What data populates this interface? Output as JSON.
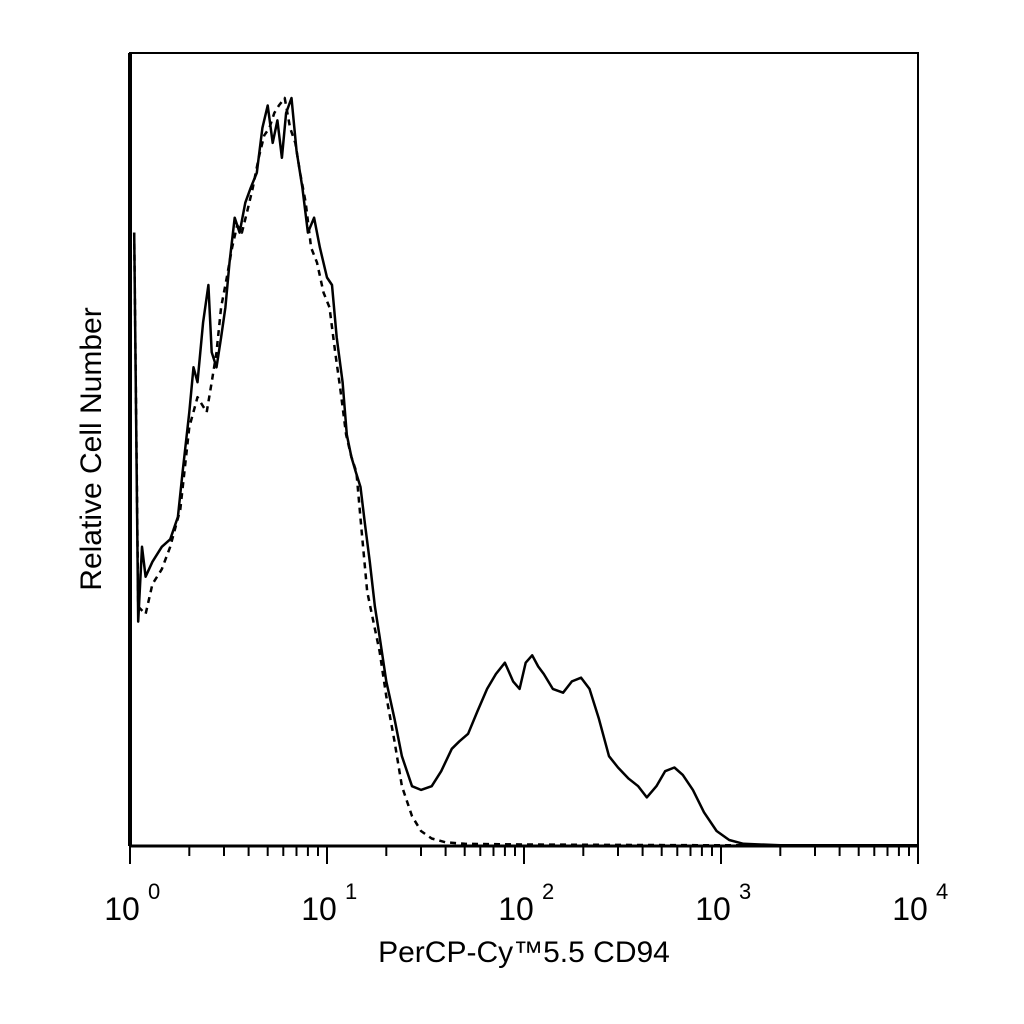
{
  "chart_data": {
    "type": "line",
    "xlabel": "PerCP-Cy™5.5 CD94",
    "ylabel": "Relative Cell Number",
    "x_scale": "log",
    "xlim": [
      1,
      10000
    ],
    "ylim": [
      0,
      100
    ],
    "x_ticks": [
      {
        "value": 1,
        "base": "10",
        "exp": "0"
      },
      {
        "value": 10,
        "base": "10",
        "exp": "1"
      },
      {
        "value": 100,
        "base": "10",
        "exp": "2"
      },
      {
        "value": 1000,
        "base": "10",
        "exp": "3"
      },
      {
        "value": 10000,
        "base": "10",
        "exp": "4"
      }
    ],
    "grid": false,
    "legend": "none",
    "series": [
      {
        "style": "solid",
        "color": "#000000",
        "points": [
          [
            1.05,
            82
          ],
          [
            1.1,
            30
          ],
          [
            1.15,
            40
          ],
          [
            1.2,
            36
          ],
          [
            1.3,
            38
          ],
          [
            1.45,
            40
          ],
          [
            1.6,
            41
          ],
          [
            1.75,
            44
          ],
          [
            1.85,
            50
          ],
          [
            2.0,
            58
          ],
          [
            2.1,
            64
          ],
          [
            2.2,
            62
          ],
          [
            2.35,
            70
          ],
          [
            2.5,
            75
          ],
          [
            2.6,
            66
          ],
          [
            2.75,
            64
          ],
          [
            2.9,
            68
          ],
          [
            3.05,
            72
          ],
          [
            3.2,
            78
          ],
          [
            3.4,
            84
          ],
          [
            3.6,
            82
          ],
          [
            3.85,
            86
          ],
          [
            4.1,
            88
          ],
          [
            4.4,
            90
          ],
          [
            4.7,
            96
          ],
          [
            5.0,
            99
          ],
          [
            5.3,
            94
          ],
          [
            5.6,
            97
          ],
          [
            5.9,
            92
          ],
          [
            6.2,
            98
          ],
          [
            6.6,
            100
          ],
          [
            7.0,
            93
          ],
          [
            7.5,
            88
          ],
          [
            8.0,
            82
          ],
          [
            8.6,
            84
          ],
          [
            9.2,
            80
          ],
          [
            10.0,
            76
          ],
          [
            10.6,
            75
          ],
          [
            11.2,
            68
          ],
          [
            12.0,
            62
          ],
          [
            12.6,
            55
          ],
          [
            13.3,
            52
          ],
          [
            14.0,
            50
          ],
          [
            14.8,
            48
          ],
          [
            15.6,
            43
          ],
          [
            16.5,
            38
          ],
          [
            17.5,
            32
          ],
          [
            18.5,
            28
          ],
          [
            20.0,
            22
          ],
          [
            22.0,
            17
          ],
          [
            24.0,
            12
          ],
          [
            27.0,
            8
          ],
          [
            30.0,
            7.5
          ],
          [
            34.0,
            8
          ],
          [
            38.0,
            10
          ],
          [
            43.0,
            13
          ],
          [
            47.0,
            14
          ],
          [
            52.0,
            15
          ],
          [
            58.0,
            18
          ],
          [
            65.0,
            21
          ],
          [
            72.0,
            23
          ],
          [
            80.0,
            24.5
          ],
          [
            88.0,
            22
          ],
          [
            95.0,
            21
          ],
          [
            102.0,
            24.5
          ],
          [
            110.0,
            25.5
          ],
          [
            118.0,
            24
          ],
          [
            126.0,
            23
          ],
          [
            140.0,
            21
          ],
          [
            158.0,
            20.5
          ],
          [
            175.0,
            22
          ],
          [
            195.0,
            22.5
          ],
          [
            215.0,
            21
          ],
          [
            240.0,
            17
          ],
          [
            270.0,
            12
          ],
          [
            300.0,
            10.5
          ],
          [
            340.0,
            9
          ],
          [
            380.0,
            8
          ],
          [
            420.0,
            6.5
          ],
          [
            470.0,
            8
          ],
          [
            520.0,
            10
          ],
          [
            580.0,
            10.5
          ],
          [
            640.0,
            9.5
          ],
          [
            720.0,
            7.5
          ],
          [
            820.0,
            4.5
          ],
          [
            950.0,
            2
          ],
          [
            1100.0,
            0.8
          ],
          [
            1300.0,
            0.3
          ],
          [
            2000.0,
            0.1
          ],
          [
            10000.0,
            0.1
          ]
        ]
      },
      {
        "style": "dashed",
        "color": "#000000",
        "points": [
          [
            1.05,
            82
          ],
          [
            1.1,
            32
          ],
          [
            1.2,
            31
          ],
          [
            1.3,
            35
          ],
          [
            1.45,
            37
          ],
          [
            1.6,
            40
          ],
          [
            1.8,
            45
          ],
          [
            2.0,
            56
          ],
          [
            2.2,
            60
          ],
          [
            2.45,
            58
          ],
          [
            2.6,
            62
          ],
          [
            2.75,
            66
          ],
          [
            2.9,
            72
          ],
          [
            3.1,
            76
          ],
          [
            3.3,
            80
          ],
          [
            3.5,
            83
          ],
          [
            3.7,
            82
          ],
          [
            3.95,
            85
          ],
          [
            4.2,
            88
          ],
          [
            4.5,
            92
          ],
          [
            4.8,
            95
          ],
          [
            5.1,
            96
          ],
          [
            5.4,
            98
          ],
          [
            5.7,
            99
          ],
          [
            6.1,
            100
          ],
          [
            6.5,
            96
          ],
          [
            6.9,
            94
          ],
          [
            7.3,
            90
          ],
          [
            7.8,
            86
          ],
          [
            8.3,
            80
          ],
          [
            8.9,
            78
          ],
          [
            9.6,
            74
          ],
          [
            10.3,
            72
          ],
          [
            11.0,
            66
          ],
          [
            11.7,
            61
          ],
          [
            12.5,
            55
          ],
          [
            13.3,
            52
          ],
          [
            14.1,
            50
          ],
          [
            15.0,
            42
          ],
          [
            16.0,
            34
          ],
          [
            17.2,
            30
          ],
          [
            18.5,
            26
          ],
          [
            20.0,
            20
          ],
          [
            22.0,
            14
          ],
          [
            24.0,
            8
          ],
          [
            27.0,
            4
          ],
          [
            30.0,
            2
          ],
          [
            34.0,
            1
          ],
          [
            40.0,
            0.5
          ],
          [
            50.0,
            0.3
          ],
          [
            100.0,
            0.2
          ],
          [
            1000.0,
            0.1
          ],
          [
            10000.0,
            0.1
          ]
        ]
      }
    ]
  }
}
